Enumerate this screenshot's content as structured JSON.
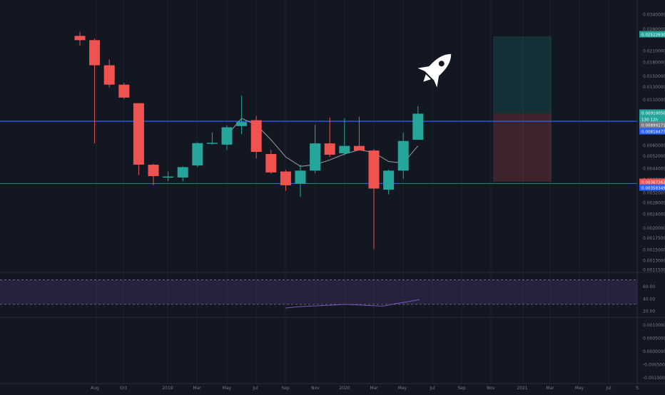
{
  "chart_data": [
    {
      "type": "candlestick",
      "title": "",
      "scale": "log",
      "grid": true,
      "x_labels": [
        "Aug",
        "Oct",
        "2019",
        "Mar",
        "May",
        "Jul",
        "Sep",
        "Nov",
        "2020",
        "Mar",
        "May",
        "Jul",
        "Sep",
        "Nov",
        "2021",
        "Mar",
        "May",
        "Jul",
        "S"
      ],
      "y_ticks": [
        "0.03400000",
        "0.02800000",
        "0.02100000",
        "0.01800000",
        "0.01500000",
        "0.01300000",
        "0.01100000",
        "0.00900000",
        "0.00800000",
        "0.00600000",
        "0.00520000",
        "0.00440000",
        "0.00380000",
        "0.00320000",
        "0.00280000",
        "0.00240000",
        "0.00200000",
        "0.00175000",
        "0.00150000",
        "0.00130000",
        "0.00115000"
      ],
      "price_labels": [
        {
          "text": "0.02522630",
          "color": "#26a69a"
        },
        {
          "text": "0.00910050",
          "color": "#26a69a"
        },
        {
          "text": "130 12h",
          "color": "#26a69a"
        },
        {
          "text": "0.00899171",
          "color": "#787b86"
        },
        {
          "text": "0.00818477",
          "color": "#2962ff"
        },
        {
          "text": "0.00367262",
          "color": "#ef5350"
        },
        {
          "text": "0.00358349",
          "color": "#2962ff"
        }
      ],
      "candles": [
        {
          "open": 0.0254,
          "high": 0.0268,
          "low": 0.0222,
          "close": 0.024
        },
        {
          "open": 0.024,
          "high": 0.0245,
          "low": 0.0061,
          "close": 0.0172
        },
        {
          "open": 0.0172,
          "high": 0.0186,
          "low": 0.0128,
          "close": 0.0133
        },
        {
          "open": 0.0133,
          "high": 0.0136,
          "low": 0.011,
          "close": 0.0112
        },
        {
          "open": 0.0104,
          "high": 0.0104,
          "low": 0.004,
          "close": 0.0046
        },
        {
          "open": 0.0046,
          "high": 0.00465,
          "low": 0.0035,
          "close": 0.00395
        },
        {
          "open": 0.0039,
          "high": 0.0042,
          "low": 0.0037,
          "close": 0.00393
        },
        {
          "open": 0.00388,
          "high": 0.0045,
          "low": 0.00368,
          "close": 0.00445
        },
        {
          "open": 0.00455,
          "high": 0.0062,
          "low": 0.00445,
          "close": 0.00612
        },
        {
          "open": 0.00612,
          "high": 0.00705,
          "low": 0.006,
          "close": 0.00615
        },
        {
          "open": 0.006,
          "high": 0.00775,
          "low": 0.0056,
          "close": 0.00755
        },
        {
          "open": 0.00768,
          "high": 0.0115,
          "low": 0.0069,
          "close": 0.0081
        },
        {
          "open": 0.0083,
          "high": 0.0088,
          "low": 0.005,
          "close": 0.00545
        },
        {
          "open": 0.0053,
          "high": 0.0056,
          "low": 0.00408,
          "close": 0.00415
        },
        {
          "open": 0.0042,
          "high": 0.0043,
          "low": 0.00325,
          "close": 0.0035
        },
        {
          "open": 0.00358,
          "high": 0.0046,
          "low": 0.003,
          "close": 0.00425
        },
        {
          "open": 0.00425,
          "high": 0.0078,
          "low": 0.0041,
          "close": 0.0061
        },
        {
          "open": 0.0061,
          "high": 0.0086,
          "low": 0.0051,
          "close": 0.00525
        },
        {
          "open": 0.00535,
          "high": 0.0085,
          "low": 0.0052,
          "close": 0.0059
        },
        {
          "open": 0.0059,
          "high": 0.0087,
          "low": 0.00565,
          "close": 0.00555
        },
        {
          "open": 0.00555,
          "high": 0.00565,
          "low": 0.0015,
          "close": 0.00335
        },
        {
          "open": 0.0033,
          "high": 0.0043,
          "low": 0.0031,
          "close": 0.00425
        },
        {
          "open": 0.00425,
          "high": 0.00705,
          "low": 0.0038,
          "close": 0.0063
        },
        {
          "open": 0.0064,
          "high": 0.01,
          "low": 0.0064,
          "close": 0.00905
        }
      ],
      "ma_values": [
        null,
        null,
        null,
        null,
        null,
        null,
        null,
        null,
        null,
        null,
        0.0068,
        0.0085,
        0.0078,
        0.0064,
        0.0051,
        0.0045,
        0.0046,
        0.0049,
        0.0053,
        0.0056,
        0.0054,
        0.0048,
        0.0047,
        0.0059
      ],
      "horizontal_levels": [
        0.00818,
        0.00358
      ],
      "position": {
        "target": 0.02522,
        "entry": 0.0091,
        "stop": 0.00367
      },
      "annotation": "rocket-icon",
      "colors": {
        "up": "#26a69a",
        "down": "#ef5350",
        "level": "#2962ff",
        "ma": "#b2b5be",
        "background": "#131722"
      }
    },
    {
      "type": "line",
      "title": "",
      "y_ticks": [
        "60.00",
        "40.00",
        "20.00"
      ],
      "band": [
        30,
        70
      ],
      "series": [
        {
          "values": [
            24,
            26,
            27,
            28,
            29,
            30,
            29,
            28,
            27,
            31,
            34,
            38
          ]
        }
      ],
      "colors": {
        "band": "#7e57c2",
        "line": "#7e57c2"
      }
    },
    {
      "type": "line",
      "title": "",
      "y_ticks": [
        "0.00100000",
        "0.00050000",
        "0.00000000",
        "-0.00050000",
        "-0.00100000"
      ],
      "series": []
    }
  ]
}
